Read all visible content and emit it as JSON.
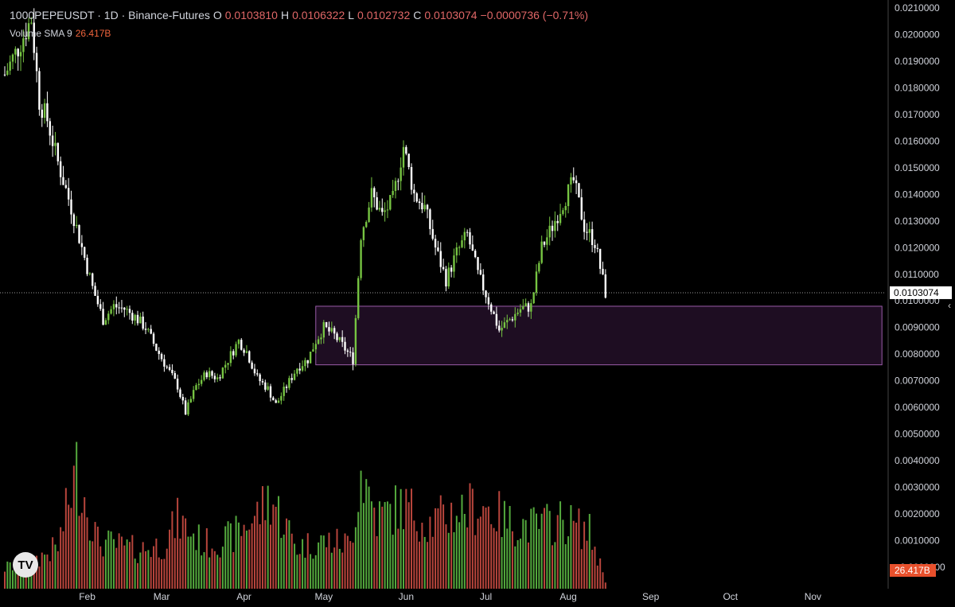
{
  "header": {
    "symbol_line": "1000PEPEUSDT · 1D · Binance-Futures",
    "open_label": "O",
    "open": "0.0103810",
    "high_label": "H",
    "high": "0.0106322",
    "low_label": "L",
    "low": "0.0102732",
    "close_label": "C",
    "close": "0.0103074",
    "change": "−0.0000736 (−0.71%)"
  },
  "volume_legend": {
    "label": "Volume SMA 9",
    "value": "26.417B"
  },
  "last_price_badge": "0.0103074",
  "volume_badge": "26.417B",
  "logo_text": "TV",
  "colors": {
    "up": "#76c442",
    "down": "#ffffff",
    "zone_fill": "#1e0d22",
    "zone_border": "#9a5ba8",
    "vol_up": "#54a93d",
    "vol_down": "#b8453c",
    "badge_bg": "#e8502c"
  },
  "chart_data": {
    "type": "candlestick",
    "ylim": [
      0.0,
      0.021
    ],
    "y_ticks": [
      "0.0210000",
      "0.0200000",
      "0.0190000",
      "0.0180000",
      "0.0170000",
      "0.0160000",
      "0.0150000",
      "0.0140000",
      "0.0130000",
      "0.0120000",
      "0.0110000",
      "0.0100000",
      "0.0090000",
      "0.0080000",
      "0.0070000",
      "0.0060000",
      "0.0050000",
      "0.0040000",
      "0.0030000",
      "0.0020000",
      "0.0010000",
      "−0.0000000"
    ],
    "y_tick_values": [
      0.021,
      0.02,
      0.019,
      0.018,
      0.017,
      0.016,
      0.015,
      0.014,
      0.013,
      0.012,
      0.011,
      0.01,
      0.009,
      0.008,
      0.007,
      0.006,
      0.005,
      0.004,
      0.003,
      0.002,
      0.001,
      0.0
    ],
    "x_ticks": [
      "Feb",
      "Mar",
      "Apr",
      "May",
      "Jun",
      "Jul",
      "Aug",
      "Sep",
      "Oct",
      "Nov"
    ],
    "x_tick_days": [
      31,
      59,
      90,
      120,
      151,
      181,
      212,
      243,
      273,
      304
    ],
    "last_price": 0.0103074,
    "support_zone": {
      "from_day": 117,
      "to_day": 330,
      "low": 0.0076,
      "high": 0.0098
    },
    "price_path": [
      [
        0,
        0.0185
      ],
      [
        5,
        0.0195
      ],
      [
        10,
        0.0206
      ],
      [
        13,
        0.0175
      ],
      [
        16,
        0.0168
      ],
      [
        20,
        0.0152
      ],
      [
        25,
        0.0135
      ],
      [
        29,
        0.012
      ],
      [
        33,
        0.0105
      ],
      [
        37,
        0.0093
      ],
      [
        41,
        0.0098
      ],
      [
        45,
        0.0097
      ],
      [
        49,
        0.0094
      ],
      [
        53,
        0.009
      ],
      [
        57,
        0.0082
      ],
      [
        61,
        0.0075
      ],
      [
        65,
        0.0068
      ],
      [
        68,
        0.0058
      ],
      [
        72,
        0.0068
      ],
      [
        76,
        0.0073
      ],
      [
        80,
        0.0071
      ],
      [
        84,
        0.0078
      ],
      [
        88,
        0.0085
      ],
      [
        91,
        0.0081
      ],
      [
        95,
        0.0071
      ],
      [
        99,
        0.0067
      ],
      [
        102,
        0.0061
      ],
      [
        106,
        0.0068
      ],
      [
        110,
        0.0075
      ],
      [
        114,
        0.0078
      ],
      [
        117,
        0.0085
      ],
      [
        120,
        0.009
      ],
      [
        124,
        0.0087
      ],
      [
        128,
        0.0082
      ],
      [
        131,
        0.0078
      ],
      [
        134,
        0.0125
      ],
      [
        138,
        0.014
      ],
      [
        142,
        0.0132
      ],
      [
        146,
        0.0138
      ],
      [
        150,
        0.0158
      ],
      [
        154,
        0.014
      ],
      [
        158,
        0.0135
      ],
      [
        162,
        0.012
      ],
      [
        166,
        0.0108
      ],
      [
        170,
        0.0118
      ],
      [
        174,
        0.0125
      ],
      [
        178,
        0.011
      ],
      [
        182,
        0.01
      ],
      [
        186,
        0.0089
      ],
      [
        190,
        0.0093
      ],
      [
        194,
        0.0097
      ],
      [
        198,
        0.0098
      ],
      [
        202,
        0.012
      ],
      [
        206,
        0.0128
      ],
      [
        210,
        0.0137
      ],
      [
        214,
        0.0145
      ],
      [
        218,
        0.0128
      ],
      [
        222,
        0.0122
      ],
      [
        226,
        0.0103
      ]
    ],
    "volume_ylim": [
      0,
      5.0
    ],
    "volume_profile": [
      [
        0,
        0.7
      ],
      [
        10,
        0.9
      ],
      [
        20,
        1.4
      ],
      [
        27,
        4.0
      ],
      [
        35,
        1.6
      ],
      [
        50,
        1.3
      ],
      [
        60,
        1.5
      ],
      [
        65,
        2.3
      ],
      [
        75,
        1.5
      ],
      [
        85,
        1.7
      ],
      [
        95,
        2.5
      ],
      [
        100,
        3.1
      ],
      [
        110,
        1.4
      ],
      [
        120,
        1.6
      ],
      [
        130,
        1.5
      ],
      [
        134,
        4.0
      ],
      [
        140,
        2.4
      ],
      [
        150,
        2.8
      ],
      [
        160,
        2.2
      ],
      [
        170,
        2.6
      ],
      [
        180,
        2.8
      ],
      [
        190,
        2.2
      ],
      [
        200,
        2.1
      ],
      [
        210,
        2.3
      ],
      [
        220,
        1.9
      ],
      [
        226,
        0.3
      ]
    ]
  }
}
